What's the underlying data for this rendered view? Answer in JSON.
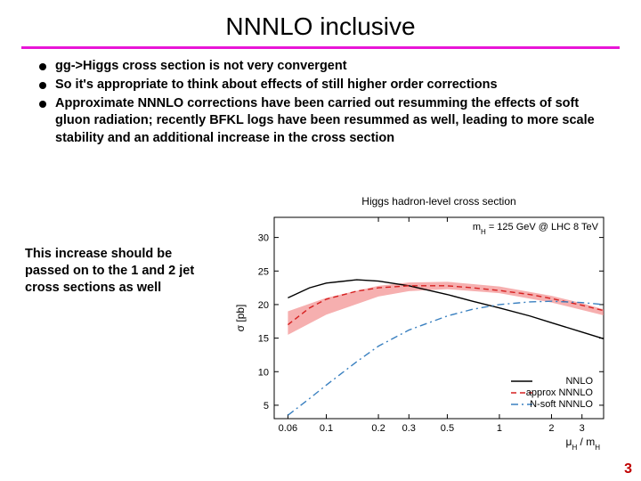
{
  "title": "NNNLO inclusive",
  "bullets": [
    "gg->Higgs cross section is not very convergent",
    "So it's appropriate to think about effects of still higher order corrections",
    "Approximate NNNLO corrections have been carried out resumming the effects of soft gluon radiation; recently BFKL logs have been resummed as well, leading to more scale stability and an additional increase  in the cross section"
  ],
  "aside": "This increase should be passed on to the 1 and 2 jet cross sections as well",
  "pagenum": "3",
  "chart": {
    "type": "line",
    "title": "Higgs hadron-level cross section",
    "annotation_left": "m",
    "annotation_sub": "H",
    "annotation_rest": " = 125 GeV  @  LHC 8 TeV",
    "xlabel_mu": "μ",
    "xlabel_sub": "H",
    "xlabel_slash": " / m",
    "ylabel": "σ [pb]",
    "background_color": "#ffffff",
    "axis_color": "#000000",
    "xlog": true,
    "xlim": [
      0.05,
      4
    ],
    "ylim": [
      3,
      33
    ],
    "xticks": [
      0.06,
      0.1,
      0.2,
      0.3,
      0.5,
      1,
      2,
      3
    ],
    "xtick_labels": [
      "0.06",
      "0.1",
      "0.2",
      "0.3",
      "0.5",
      "1",
      "2",
      "3"
    ],
    "yticks": [
      5,
      10,
      15,
      20,
      25,
      30
    ],
    "xtick_top": [
      0.2,
      0.3,
      0.5
    ],
    "legend": [
      {
        "label": "NNLO",
        "color": "#000000",
        "dash": "solid"
      },
      {
        "label": "approx NNNLO",
        "color": "#d62020",
        "dash": "dash"
      },
      {
        "label": "N-soft NNNLO",
        "color": "#3a80c0",
        "dash": "dashdot"
      }
    ],
    "band": {
      "color": "#f07a7a",
      "opacity": 0.6,
      "x": [
        0.06,
        0.1,
        0.2,
        0.3,
        0.5,
        1,
        2,
        3,
        4
      ],
      "lo": [
        15.5,
        18.5,
        21.2,
        22.0,
        22.3,
        21.7,
        20.3,
        19.2,
        18.4
      ],
      "hi": [
        19.0,
        21.0,
        22.8,
        23.3,
        23.4,
        22.7,
        21.3,
        20.2,
        19.3
      ]
    },
    "series": [
      {
        "name": "NNLO",
        "color": "#000000",
        "dash": "solid",
        "width": 1.4,
        "x": [
          0.06,
          0.08,
          0.1,
          0.15,
          0.2,
          0.3,
          0.5,
          0.7,
          1,
          1.5,
          2,
          3,
          4
        ],
        "y": [
          21,
          22.5,
          23.2,
          23.7,
          23.5,
          22.8,
          21.5,
          20.5,
          19.5,
          18.3,
          17.3,
          15.9,
          14.9
        ]
      },
      {
        "name": "approx NNNLO",
        "color": "#d62020",
        "dash": "dash",
        "width": 1.4,
        "x": [
          0.06,
          0.08,
          0.1,
          0.15,
          0.2,
          0.3,
          0.5,
          0.7,
          1,
          1.5,
          2,
          3,
          4
        ],
        "y": [
          17,
          19.5,
          20.8,
          22,
          22.5,
          22.8,
          22.8,
          22.5,
          22.1,
          21.5,
          20.9,
          19.9,
          19.1
        ]
      },
      {
        "name": "N-soft NNNLO",
        "color": "#3a80c0",
        "dash": "dashdot",
        "width": 1.4,
        "x": [
          0.06,
          0.08,
          0.1,
          0.15,
          0.2,
          0.3,
          0.5,
          0.7,
          1,
          1.5,
          2,
          3,
          4
        ],
        "y": [
          3.5,
          6,
          8,
          11.5,
          13.8,
          16.2,
          18.3,
          19.3,
          20,
          20.4,
          20.5,
          20.3,
          20.0
        ]
      }
    ]
  }
}
